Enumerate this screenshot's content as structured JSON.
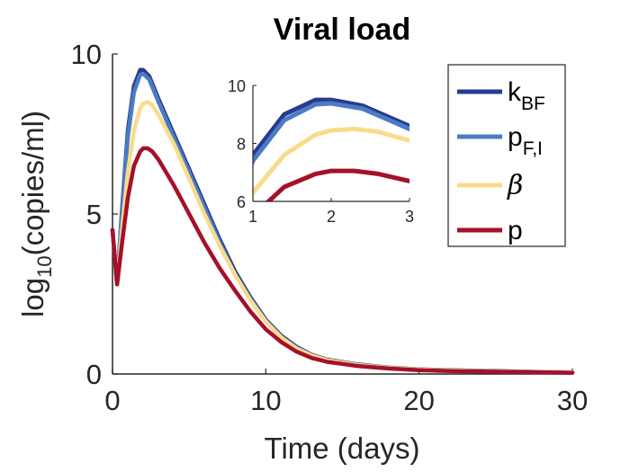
{
  "chart_data": {
    "type": "line",
    "title": "Viral load",
    "xlabel": "Time (days)",
    "ylabel": {
      "base": "log",
      "sub": "10",
      "rest": "(copies/ml)"
    },
    "xlim": [
      0,
      30
    ],
    "ylim": [
      0,
      10
    ],
    "xticks": [
      "0",
      "10",
      "20",
      "30"
    ],
    "yticks": [
      "0",
      "5",
      "10"
    ],
    "grid": false,
    "legend_position": "top-right",
    "series": [
      {
        "key": "kBF",
        "name": "k",
        "sub": "BF",
        "italic": false,
        "color": "#2a3a8f",
        "x": [
          0,
          0.3,
          0.6,
          1.0,
          1.4,
          1.8,
          2.0,
          2.4,
          3.0,
          4.0,
          5.0,
          6.0,
          7.0,
          8.0,
          9.0,
          10.0,
          11.0,
          12.0,
          13.0,
          14.0,
          16.0,
          18.0,
          20.0,
          22.0,
          25.0,
          30.0
        ],
        "y": [
          4.5,
          2.8,
          5.0,
          7.6,
          9.0,
          9.5,
          9.5,
          9.3,
          8.6,
          7.5,
          6.4,
          5.3,
          4.2,
          3.2,
          2.4,
          1.7,
          1.2,
          0.85,
          0.6,
          0.45,
          0.3,
          0.2,
          0.15,
          0.12,
          0.09,
          0.05
        ]
      },
      {
        "key": "pFI",
        "name": "p",
        "sub": "F,I",
        "italic": false,
        "color": "#4a7cc2",
        "x": [
          0,
          0.3,
          0.6,
          1.0,
          1.4,
          1.8,
          2.0,
          2.4,
          3.0,
          4.0,
          5.0,
          6.0,
          7.0,
          8.0,
          9.0,
          10.0,
          11.0,
          12.0,
          13.0,
          14.0,
          16.0,
          18.0,
          20.0,
          22.0,
          25.0,
          30.0
        ],
        "y": [
          4.5,
          2.8,
          4.9,
          7.4,
          8.8,
          9.35,
          9.38,
          9.2,
          8.5,
          7.4,
          6.3,
          5.2,
          4.1,
          3.1,
          2.35,
          1.65,
          1.15,
          0.82,
          0.58,
          0.43,
          0.29,
          0.19,
          0.14,
          0.11,
          0.08,
          0.05
        ]
      },
      {
        "key": "beta",
        "name": "β",
        "sub": "",
        "italic": true,
        "color": "#f8dc8c",
        "x": [
          0,
          0.3,
          0.6,
          1.0,
          1.4,
          1.8,
          2.0,
          2.3,
          2.6,
          3.0,
          4.0,
          5.0,
          6.0,
          7.0,
          8.0,
          9.0,
          10.0,
          11.0,
          12.0,
          13.0,
          14.0,
          16.0,
          18.0,
          20.0,
          22.0,
          25.0,
          30.0
        ],
        "y": [
          4.5,
          2.8,
          4.4,
          6.3,
          7.6,
          8.3,
          8.45,
          8.5,
          8.4,
          8.1,
          7.2,
          6.1,
          5.0,
          4.0,
          3.1,
          2.3,
          1.65,
          1.15,
          0.8,
          0.58,
          0.43,
          0.28,
          0.19,
          0.14,
          0.11,
          0.08,
          0.05
        ]
      },
      {
        "key": "p",
        "name": "p",
        "sub": "",
        "italic": false,
        "color": "#a5102a",
        "x": [
          0,
          0.3,
          0.6,
          1.0,
          1.4,
          1.8,
          2.0,
          2.3,
          2.6,
          3.0,
          4.0,
          5.0,
          6.0,
          7.0,
          8.0,
          9.0,
          10.0,
          11.0,
          12.0,
          13.0,
          14.0,
          16.0,
          18.0,
          20.0,
          22.0,
          25.0,
          30.0
        ],
        "y": [
          4.5,
          2.8,
          4.0,
          5.5,
          6.5,
          6.95,
          7.05,
          7.05,
          6.95,
          6.7,
          5.9,
          5.0,
          4.1,
          3.3,
          2.6,
          1.95,
          1.4,
          1.0,
          0.7,
          0.5,
          0.38,
          0.25,
          0.17,
          0.12,
          0.09,
          0.07,
          0.04
        ]
      }
    ],
    "inset": {
      "xlim": [
        1,
        3
      ],
      "ylim": [
        6,
        10
      ],
      "xticks": [
        "1",
        "2",
        "3"
      ],
      "yticks": [
        "6",
        "8",
        "10"
      ]
    }
  }
}
